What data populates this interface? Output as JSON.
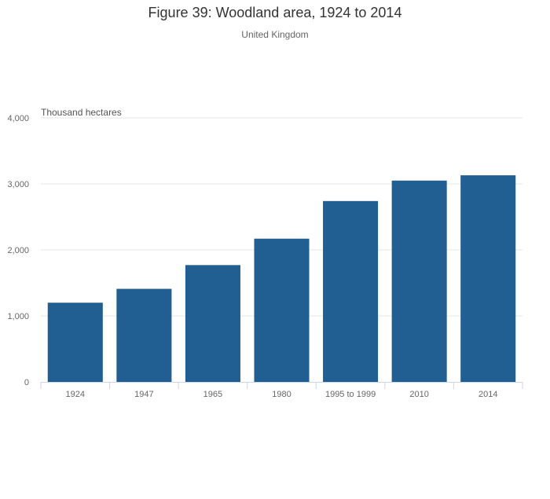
{
  "chart_data": {
    "type": "bar",
    "title": "Figure 39: Woodland area, 1924 to 2014",
    "subtitle": "United Kingdom",
    "ylabel": "Thousand hectares",
    "xlabel": "",
    "categories": [
      "1924",
      "1947",
      "1965",
      "1980",
      "1995 to 1999",
      "2010",
      "2014"
    ],
    "values": [
      1200,
      1410,
      1770,
      2170,
      2740,
      3050,
      3130
    ],
    "ylim": [
      0,
      4000
    ],
    "yticks": [
      0,
      1000,
      2000,
      3000,
      4000
    ],
    "ytick_labels": [
      "0",
      "1,000",
      "2,000",
      "3,000",
      "4,000"
    ],
    "grid": true,
    "legend": "none",
    "colors": {
      "bar": "#215f93",
      "grid": "#e6e6e6",
      "axis": "#ccd6eb"
    }
  }
}
